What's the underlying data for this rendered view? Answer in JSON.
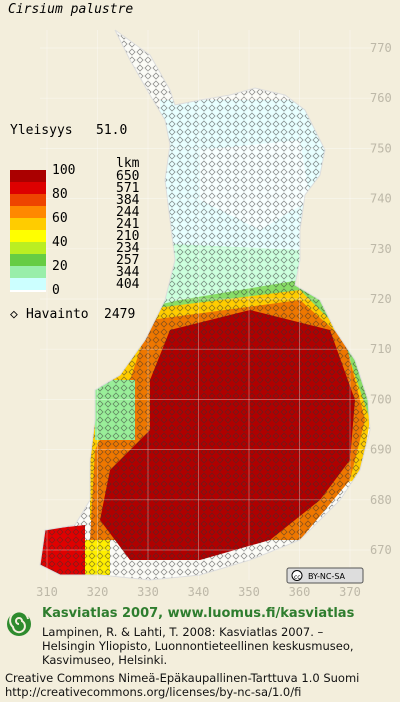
{
  "title": "Cirsium palustre",
  "frequency": {
    "label": "Yleisyys",
    "value": "51.0"
  },
  "legend": {
    "scale_labels": [
      "100",
      "80",
      "60",
      "40",
      "20",
      "0"
    ],
    "count_header": "lkm",
    "counts": [
      650,
      571,
      384,
      244,
      241,
      210,
      234,
      257,
      344,
      404
    ]
  },
  "observations": {
    "label": "Havainto",
    "value": 2479
  },
  "grid_labels": {
    "north": [
      "770",
      "760",
      "750",
      "740",
      "730",
      "720",
      "710",
      "700",
      "690",
      "680",
      "670"
    ],
    "east": [
      "310",
      "320",
      "330",
      "340",
      "350",
      "360",
      "370"
    ]
  },
  "license_badge": "BY-NC-SA",
  "footer": {
    "heading": "Kasviatlas 2007, www.luomus.fi/kasviatlas",
    "citation": [
      "Lampinen, R. & Lahti, T. 2008: Kasviatlas 2007. –",
      "Helsingin Yliopisto, Luonnontieteellinen keskusmuseo,",
      "Kasvimuseo, Helsinki."
    ],
    "license": [
      "Creative Commons Nimeä-Epäkaupallinen-Tarttuva 1.0 Suomi",
      "http://creativecommons.org/licenses/by-nc-sa/1.0/fi"
    ]
  }
}
